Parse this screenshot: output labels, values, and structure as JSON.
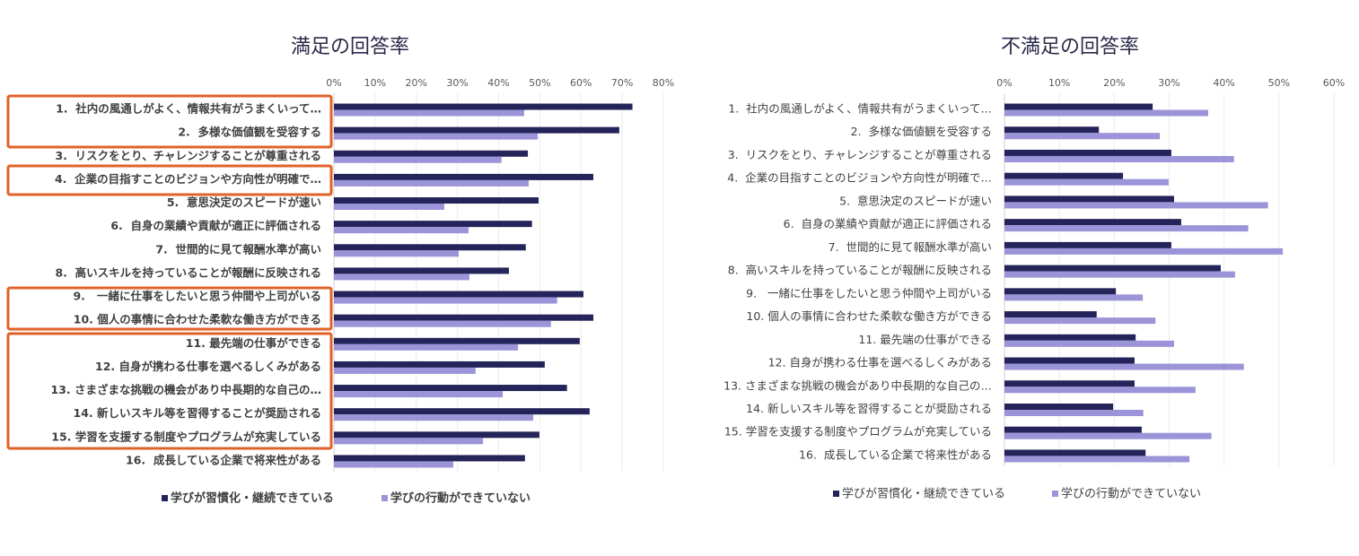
{
  "chart_data": [
    {
      "type": "barh",
      "title": "満足の回答率",
      "categories": [
        "1.  社内の風通しがよく、情報共有がうまくいって…",
        "2.  多様な価値観を受容する",
        "3.  リスクをとり、チャレンジすることが尊重される",
        "4.  企業の目指すことのビジョンや方向性が明確で…",
        "5.  意思決定のスピードが速い",
        "6.  自身の業績や貢献が適正に評価される",
        "7.  世間的に見て報酬水準が高い",
        "8.  高いスキルを持っていることが報酬に反映される",
        "9.   一緒に仕事をしたいと思う仲間や上司がいる",
        "10. 個人の事情に合わせた柔軟な働き方ができる",
        "11. 最先端の仕事ができる",
        "12. 自身が携わる仕事を選べるしくみがある",
        "13. さまざまな挑戦の機会があり中長期的な自己の…",
        "14. 新しいスキル等を習得することが奨励される",
        "15. 学習を支援する制度やプログラムが充実している",
        "16.  成長している企業で将来性がある"
      ],
      "series": [
        {
          "name": "学びが習慣化・継続できている",
          "color": "#24245a",
          "values": [
            72.5,
            69.3,
            47.1,
            63,
            49.7,
            48.1,
            46.6,
            42.5,
            60.6,
            63,
            59.7,
            51.2,
            56.6,
            62.1,
            49.9,
            46.4
          ]
        },
        {
          "name": "学びの行動ができていない",
          "color": "#9b94d8",
          "values": [
            46.2,
            49.5,
            40.7,
            47.3,
            26.8,
            32.7,
            30.3,
            32.9,
            54.2,
            52.7,
            44.7,
            34.4,
            41,
            48.4,
            36.2,
            29
          ]
        }
      ],
      "xlim": [
        0,
        80
      ],
      "xticks": [
        {
          "value": 0,
          "label": "0%"
        },
        {
          "value": 10,
          "label": "10%"
        },
        {
          "value": 20,
          "label": "20%"
        },
        {
          "value": 30,
          "label": "30%"
        },
        {
          "value": 40,
          "label": "40%"
        },
        {
          "value": 50,
          "label": "50%"
        },
        {
          "value": 60,
          "label": "60%"
        },
        {
          "value": 70,
          "label": "70%"
        },
        {
          "value": 80,
          "label": "80%"
        }
      ],
      "grid": true,
      "legend": "bottom"
    },
    {
      "type": "barh",
      "title": "不満足の回答率",
      "categories": [
        "1.  社内の風通しがよく、情報共有がうまくいって…",
        "2.  多様な価値観を受容する",
        "3.  リスクをとり、チャレンジすることが尊重される",
        "4.  企業の目指すことのビジョンや方向性が明確で…",
        "5.  意思決定のスピードが速い",
        "6.  自身の業績や貢献が適正に評価される",
        "7.  世間的に見て報酬水準が高い",
        "8.  高いスキルを持っていることが報酬に反映される",
        "9.   一緒に仕事をしたいと思う仲間や上司がいる",
        "10. 個人の事情に合わせた柔軟な働き方ができる",
        "11. 最先端の仕事ができる",
        "12. 自身が携わる仕事を選べるしくみがある",
        "13. さまざまな挑戦の機会があり中長期的な自己の…",
        "14. 新しいスキル等を習得することが奨励される",
        "15. 学習を支援する制度やプログラムが充実している",
        "16.  成長している企業で将来性がある"
      ],
      "series": [
        {
          "name": "学びが習慣化・継続できている",
          "color": "#24245a",
          "values": [
            27,
            17.2,
            30.4,
            21.6,
            30.9,
            32.2,
            30.4,
            39.4,
            20.3,
            16.8,
            23.9,
            23.7,
            23.7,
            19.8,
            25,
            25.7
          ]
        },
        {
          "name": "学びの行動ができていない",
          "color": "#9b94d8",
          "values": [
            37.1,
            28.3,
            41.8,
            29.9,
            48,
            44.4,
            50.7,
            42,
            25.2,
            27.5,
            30.9,
            43.6,
            34.8,
            25.3,
            37.7,
            33.7
          ]
        }
      ],
      "xlim": [
        0,
        60
      ],
      "xticks": [
        {
          "value": 0,
          "label": "0%"
        },
        {
          "value": 10,
          "label": "10%"
        },
        {
          "value": 20,
          "label": "20%"
        },
        {
          "value": 30,
          "label": "30%"
        },
        {
          "value": 40,
          "label": "40%"
        },
        {
          "value": 50,
          "label": "50%"
        },
        {
          "value": 60,
          "label": "60%"
        }
      ],
      "grid": true,
      "legend": "bottom"
    }
  ]
}
